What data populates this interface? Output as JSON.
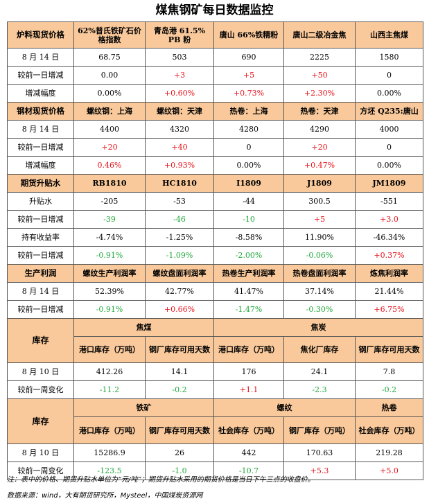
{
  "title": "煤焦钢矿每日数据监控",
  "furnace": {
    "section": "炉料现货价格",
    "headers": [
      "62%普氏铁矿石价格指数",
      "青岛港 61.5% PB 粉",
      "唐山 66%铁精粉",
      "唐山二级冶金焦",
      "山西主焦煤"
    ],
    "rows": [
      {
        "label": "8 月 14 日",
        "values": [
          "68.75",
          "503",
          "690",
          "2225",
          "1580"
        ]
      },
      {
        "label": "较前一日增减",
        "values": [
          "0.00",
          "+3",
          "+5",
          "+50",
          "0"
        ]
      },
      {
        "label": "增减幅度",
        "values": [
          "0.00%",
          "+0.60%",
          "+0.73%",
          "+2.30%",
          "0.00%"
        ]
      }
    ]
  },
  "steel": {
    "section": "钢材现货价格",
    "headers": [
      "螺纹钢：上海",
      "螺纹钢：天津",
      "热卷：上海",
      "热卷：天津",
      "方坯 Q235:唐山"
    ],
    "rows": [
      {
        "label": "8 月 14 日",
        "values": [
          "4400",
          "4320",
          "4280",
          "4290",
          "4000"
        ]
      },
      {
        "label": "较前一日增减",
        "values": [
          "+20",
          "+40",
          "0",
          "+20",
          "0"
        ]
      },
      {
        "label": "增减幅度",
        "values": [
          "0.46%",
          "+0.93%",
          "0.00%",
          "+0.47%",
          "0.00%"
        ]
      }
    ]
  },
  "futures": {
    "section": "期货升贴水",
    "headers": [
      "RB1810",
      "HC1810",
      "I1809",
      "J1809",
      "JM1809"
    ],
    "rows": [
      {
        "label": "升贴水",
        "values": [
          "-205",
          "-53",
          "-44",
          "300.5",
          "-551"
        ]
      },
      {
        "label": "较前一日增减",
        "values": [
          "-39",
          "-46",
          "-10",
          "+5",
          "+3.0"
        ]
      },
      {
        "label": "持有收益率",
        "values": [
          "-4.74%",
          "-1.25%",
          "-8.58%",
          "11.90%",
          "-46.34%"
        ]
      },
      {
        "label": "较前一日增减",
        "values": [
          "-0.91%",
          "-1.09%",
          "-2.00%",
          "-0.06%",
          "+0.37%"
        ]
      }
    ]
  },
  "profit": {
    "section": "生产利润",
    "headers": [
      "螺纹生产利润率",
      "螺纹盘面利润率",
      "热卷生产利润率",
      "热卷盘面利润率",
      "炼焦利润率"
    ],
    "rows": [
      {
        "label": "8 月 14 日",
        "values": [
          "52.39%",
          "42.77%",
          "41.47%",
          "37.14%",
          "21.44%"
        ]
      },
      {
        "label": "较前一日增减",
        "values": [
          "-0.91%",
          "+0.66%",
          "-1.47%",
          "-0.30%",
          "+6.75%"
        ]
      }
    ]
  },
  "inventory1": {
    "section": "库存",
    "groups": [
      "焦煤",
      "焦炭"
    ],
    "headers": [
      "港口库存（万吨）",
      "钢厂库存可用天数",
      "港口库存（万吨）",
      "焦化厂库存",
      "钢厂库存可用天数"
    ],
    "rows": [
      {
        "label": "8 月 10 日",
        "values": [
          "412.26",
          "14.1",
          "176",
          "24.1",
          "7.8"
        ]
      },
      {
        "label": "较前一周变化",
        "values": [
          "-11.2",
          "-0.2",
          "+1.1",
          "-2.3",
          "-0.2"
        ]
      }
    ]
  },
  "inventory2": {
    "section": "库存",
    "groups": [
      "铁矿",
      "螺纹",
      "热卷"
    ],
    "headers": [
      "港口库存（万吨）",
      "钢厂库存可用天数",
      "社会库存（万吨）",
      "钢厂库存（万吨）",
      "社会库存（万吨）"
    ],
    "rows": [
      {
        "label": "8 月 10 日",
        "values": [
          "15286.9",
          "26",
          "442",
          "170.63",
          "219.28"
        ]
      },
      {
        "label": "较前一周变化",
        "values": [
          "-123.5",
          "-1.0",
          "-10.7",
          "+5.3",
          "+5.0"
        ]
      }
    ]
  },
  "note": "注：表中的价格、期货升贴水单位为“元/吨”；期货升贴水采用的期货价格是当日下午三点的收盘价。",
  "source": "数据来源：wind，大有期货研究所，Mysteel，中国煤炭资源网",
  "colors": {
    "header_fill": "#f9c99b",
    "increase": "#e6141b",
    "decrease": "#1fa83a"
  }
}
